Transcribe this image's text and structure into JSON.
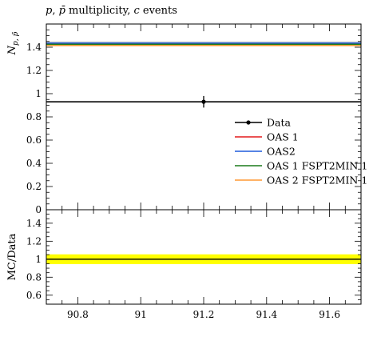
{
  "chart_data": [
    {
      "type": "line",
      "title": "p, p̄ multiplicity, c events",
      "title_parts": {
        "p": "p",
        "sep": ", ",
        "pbar": "p̄",
        "mid": " multiplicity, ",
        "c": "c",
        "end": " events"
      },
      "ylabel": "N_{p, p̄}",
      "ylabel_parts": {
        "base": "N",
        "sub": "p, p̄"
      },
      "xlim": [
        90.7,
        91.7
      ],
      "ylim": [
        0,
        1.6
      ],
      "y_ticks": [
        0,
        0.2,
        0.4,
        0.6,
        0.8,
        1,
        1.2,
        1.4
      ],
      "y_tick_labels": [
        "0",
        "0.2",
        "0.4",
        "0.6",
        "0.8",
        "1",
        "1.2",
        "1.4"
      ],
      "legend_placement": "bottom-right",
      "data_points": [
        {
          "x": 91.2,
          "y": 0.93,
          "yerr": 0.05
        }
      ],
      "series": [
        {
          "name": "Data",
          "color": "#000000",
          "value": 0.93
        },
        {
          "name": "OAS 1",
          "color": "#e41a1c",
          "value": 1.43
        },
        {
          "name": "OAS2",
          "color": "#1f5bdb",
          "value": 1.435
        },
        {
          "name": "OAS 1 FSPT2MIN 1",
          "color": "#1a7a1a",
          "value": 1.425
        },
        {
          "name": "OAS 2 FSPT2MIN 1",
          "color": "#ff9933",
          "value": 1.415
        }
      ],
      "mc_band_color": "#aaaaaa",
      "mc_band": [
        1.41,
        1.45
      ]
    },
    {
      "type": "line",
      "ylabel": "MC/Data",
      "xlabel": "",
      "xlim": [
        90.7,
        91.7
      ],
      "ylim": [
        0.5,
        1.55
      ],
      "y_ticks": [
        0.6,
        0.8,
        1,
        1.2,
        1.4
      ],
      "y_tick_labels": [
        "0.6",
        "0.8",
        "1",
        "1.2",
        "1.4"
      ],
      "x_ticks": [
        90.8,
        91,
        91.2,
        91.4,
        91.6
      ],
      "x_tick_labels": [
        "90.8",
        "91",
        "91.2",
        "91.4",
        "91.6"
      ],
      "ratio_band": [
        0.946,
        1.054
      ],
      "ratio_band_color": "#ffff00",
      "reference_value": 1
    }
  ]
}
